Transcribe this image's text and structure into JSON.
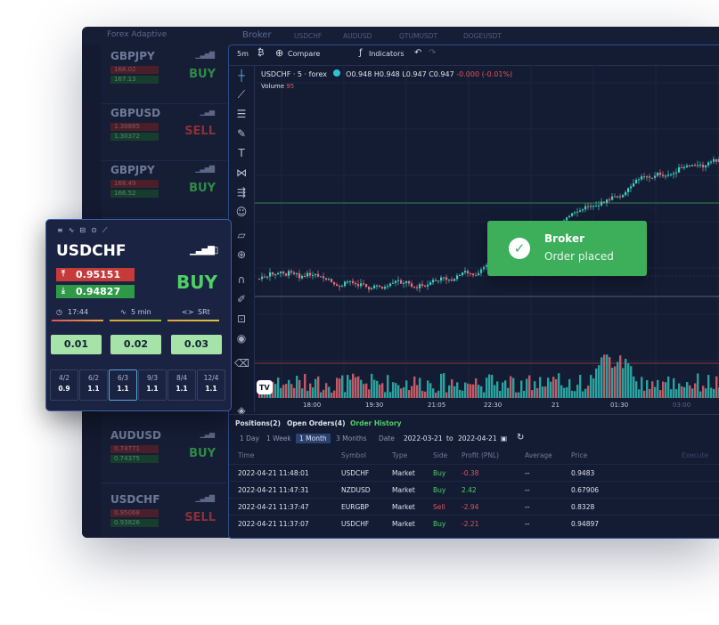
{
  "app": {
    "title": "Forex Adaptive",
    "broker_tab": "Broker",
    "symbol_tabs": [
      "USDCHF",
      "AUDUSD",
      "QTUMUSDT",
      "DOGEUSDT"
    ]
  },
  "watchlist": [
    {
      "symbol": "GBPJPY",
      "ask": "168.02",
      "bid": "167.13",
      "side": "BUY"
    },
    {
      "symbol": "GBPUSD",
      "ask": "1.30885",
      "bid": "1.30372",
      "side": "SELL"
    },
    {
      "symbol": "GBPJPY",
      "ask": "168.49",
      "bid": "166.52",
      "side": "BUY"
    },
    {
      "symbol": "AUDUSD",
      "ask": "0.74771",
      "bid": "0.74375",
      "side": "BUY"
    },
    {
      "symbol": "USDCHF",
      "ask": "0.95068",
      "bid": "0.93826",
      "side": "SELL"
    }
  ],
  "toolbar": {
    "interval": "5m",
    "compare": "Compare",
    "indicators": "Indicators"
  },
  "legend": {
    "text": "USDCHF · 5 · forex",
    "o": "O0.948",
    "h": "H0.948",
    "l": "L0.947",
    "c": "C0.947",
    "chg": "-0.000 (-0.01%)",
    "volume_label": "Volume",
    "volume_value": "95"
  },
  "time_axis": [
    "18:00",
    "19:30",
    "21:05",
    "22:30",
    "21",
    "01:30",
    "03:00"
  ],
  "toast": {
    "title": "Broker",
    "message": "Order placed"
  },
  "orders": {
    "tabs": [
      "Positions(2)",
      "Open Orders(4)",
      "Order History"
    ],
    "filters": [
      "1 Day",
      "1 Week",
      "1 Month",
      "3 Months"
    ],
    "active_filter": "1 Month",
    "date_label": "Date",
    "date_from": "2022-03-21",
    "date_to_label": "to",
    "date_to": "2022-04-21",
    "columns": [
      "Time",
      "Symbol",
      "Type",
      "Side",
      "Profit (PNL)",
      "Average",
      "Price",
      "Execute"
    ],
    "rows": [
      {
        "time": "2022-04-21 11:48:01",
        "symbol": "USDCHF",
        "type": "Market",
        "side": "Buy",
        "pnl": "-0.38",
        "avg": "--",
        "price": "0.9483"
      },
      {
        "time": "2022-04-21 11:47:31",
        "symbol": "NZDUSD",
        "type": "Market",
        "side": "Buy",
        "pnl": "2.42",
        "avg": "--",
        "price": "0.67906"
      },
      {
        "time": "2022-04-21 11:37:47",
        "symbol": "EURGBP",
        "type": "Market",
        "side": "Sell",
        "pnl": "-2.94",
        "avg": "--",
        "price": "0.8328"
      },
      {
        "time": "2022-04-21 11:37:07",
        "symbol": "USDCHF",
        "type": "Market",
        "side": "Buy",
        "pnl": "-2.21",
        "avg": "--",
        "price": "0.94897"
      }
    ]
  },
  "card": {
    "symbol": "USDCHF",
    "ask": "0.95151",
    "bid": "0.94827",
    "side": "BUY",
    "time": "17:44",
    "interval": "5 min",
    "mode": "SRt",
    "lots": [
      "0.01",
      "0.02",
      "0.03"
    ],
    "leverage": [
      {
        "top": "4/2",
        "bottom": "0.9"
      },
      {
        "top": "6/2",
        "bottom": "1.1"
      },
      {
        "top": "6/3",
        "bottom": "1.1"
      },
      {
        "top": "9/3",
        "bottom": "1.1"
      },
      {
        "top": "8/4",
        "bottom": "1.1"
      },
      {
        "top": "12/4",
        "bottom": "1.1"
      }
    ],
    "selected_leverage": "6/3"
  },
  "colors": {
    "buy": "#4ed067",
    "sell": "#e0555a",
    "accent": "#58a7d8",
    "panel": "#141c33"
  }
}
